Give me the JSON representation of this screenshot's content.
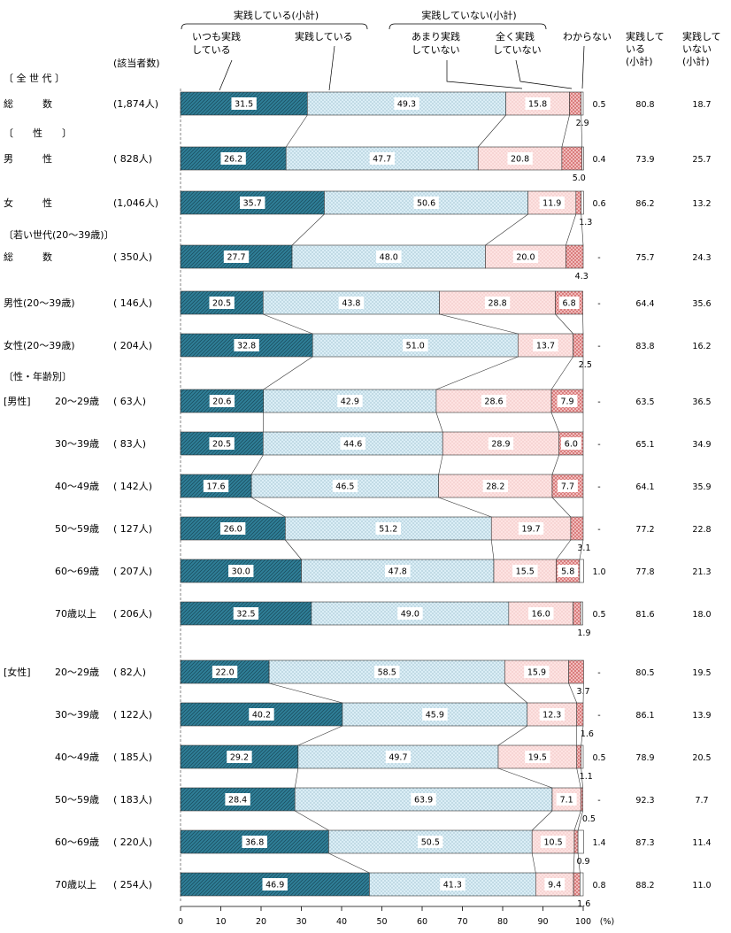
{
  "chart_data": {
    "type": "bar",
    "stacked": true,
    "orientation": "horizontal",
    "x_unit": "(%)",
    "xlim": [
      0,
      100
    ],
    "x_ticks": [
      "0",
      "10",
      "20",
      "30",
      "40",
      "50",
      "60",
      "70",
      "80",
      "90",
      "100"
    ],
    "group_labels": {
      "practice_subtotal": "実践している(小計)",
      "not_practice_subtotal": "実践していない(小計)"
    },
    "headers": {
      "n": "(該当者数)",
      "col_practice": [
        "実践して",
        "いる",
        "(小計)"
      ],
      "col_not_practice": [
        "実践して",
        "いない",
        "(小計)"
      ]
    },
    "series": [
      {
        "name": "いつも実践している",
        "label_lines": [
          "いつも実践",
          "している"
        ],
        "color": "#2f7f98"
      },
      {
        "name": "実践している",
        "label_lines": [
          "実践している"
        ],
        "color": "#dbeef6"
      },
      {
        "name": "あまり実践していない",
        "label_lines": [
          "あまり実践",
          "していない"
        ],
        "color": "#fde3e2"
      },
      {
        "name": "全く実践していない",
        "label_lines": [
          "全く実践",
          "していない"
        ],
        "color": "#e89a9a"
      },
      {
        "name": "わからない",
        "label_lines": [
          "わからない"
        ],
        "color": "#ffffff"
      }
    ],
    "sections": [
      {
        "type": "section",
        "label": "〔 全 世 代 〕"
      },
      {
        "type": "row",
        "label": "総　　　数",
        "n": "(1,874人)",
        "values": [
          31.5,
          49.3,
          15.8,
          2.9,
          0.5
        ],
        "shown": [
          "31.5",
          "49.3",
          "15.8",
          "2.9",
          "0.5"
        ],
        "practice": "80.8",
        "not_practice": "18.7"
      },
      {
        "type": "section",
        "label": "〔　　性　　〕"
      },
      {
        "type": "row",
        "label": "男　　　性",
        "n": "( 828人)",
        "values": [
          26.2,
          47.7,
          20.8,
          5.0,
          0.4
        ],
        "shown": [
          "26.2",
          "47.7",
          "20.8",
          "5.0",
          "0.4"
        ],
        "practice": "73.9",
        "not_practice": "25.7"
      },
      {
        "type": "row",
        "label": "女　　　性",
        "n": "(1,046人)",
        "values": [
          35.7,
          50.6,
          11.9,
          1.3,
          0.6
        ],
        "shown": [
          "35.7",
          "50.6",
          "11.9",
          "1.3",
          "0.6"
        ],
        "practice": "86.2",
        "not_practice": "13.2"
      },
      {
        "type": "section",
        "label": "〔若い世代(20～39歳)〕"
      },
      {
        "type": "row",
        "label": "総　　　数",
        "n": "( 350人)",
        "values": [
          27.7,
          48.0,
          20.0,
          4.3,
          0
        ],
        "shown": [
          "27.7",
          "48.0",
          "20.0",
          "4.3",
          "-"
        ],
        "practice": "75.7",
        "not_practice": "24.3"
      },
      {
        "type": "row",
        "label": "男性(20～39歳)",
        "n": "( 146人)",
        "values": [
          20.5,
          43.8,
          28.8,
          6.8,
          0
        ],
        "shown": [
          "20.5",
          "43.8",
          "28.8",
          "6.8",
          "-"
        ],
        "practice": "64.4",
        "not_practice": "35.6"
      },
      {
        "type": "row",
        "label": "女性(20～39歳)",
        "n": "( 204人)",
        "values": [
          32.8,
          51.0,
          13.7,
          2.5,
          0
        ],
        "shown": [
          "32.8",
          "51.0",
          "13.7",
          "2.5",
          "-"
        ],
        "practice": "83.8",
        "not_practice": "16.2"
      },
      {
        "type": "section",
        "label": "〔性・年齢別〕"
      },
      {
        "type": "row",
        "group": "[男性]",
        "label": "20～29歳",
        "n": "(  63人)",
        "values": [
          20.6,
          42.9,
          28.6,
          7.9,
          0
        ],
        "shown": [
          "20.6",
          "42.9",
          "28.6",
          "7.9",
          "-"
        ],
        "practice": "63.5",
        "not_practice": "36.5"
      },
      {
        "type": "row",
        "label": "30～39歳",
        "n": "(  83人)",
        "values": [
          20.5,
          44.6,
          28.9,
          6.0,
          0
        ],
        "shown": [
          "20.5",
          "44.6",
          "28.9",
          "6.0",
          "-"
        ],
        "practice": "65.1",
        "not_practice": "34.9"
      },
      {
        "type": "row",
        "label": "40～49歳",
        "n": "( 142人)",
        "values": [
          17.6,
          46.5,
          28.2,
          7.7,
          0
        ],
        "shown": [
          "17.6",
          "46.5",
          "28.2",
          "7.7",
          "-"
        ],
        "practice": "64.1",
        "not_practice": "35.9"
      },
      {
        "type": "row",
        "label": "50～59歳",
        "n": "( 127人)",
        "values": [
          26.0,
          51.2,
          19.7,
          3.1,
          0
        ],
        "shown": [
          "26.0",
          "51.2",
          "19.7",
          "3.1",
          "-"
        ],
        "practice": "77.2",
        "not_practice": "22.8"
      },
      {
        "type": "row",
        "label": "60～69歳",
        "n": "( 207人)",
        "values": [
          30.0,
          47.8,
          15.5,
          5.8,
          1.0
        ],
        "shown": [
          "30.0",
          "47.8",
          "15.5",
          "5.8",
          "1.0"
        ],
        "practice": "77.8",
        "not_practice": "21.3"
      },
      {
        "type": "row",
        "label": "70歳以上",
        "n": "( 206人)",
        "values": [
          32.5,
          49.0,
          16.0,
          1.9,
          0.5
        ],
        "shown": [
          "32.5",
          "49.0",
          "16.0",
          "1.9",
          "0.5"
        ],
        "practice": "81.6",
        "not_practice": "18.0"
      },
      {
        "type": "row",
        "group": "[女性]",
        "label": "20～29歳",
        "n": "(  82人)",
        "values": [
          22.0,
          58.5,
          15.9,
          3.7,
          0
        ],
        "shown": [
          "22.0",
          "58.5",
          "15.9",
          "3.7",
          "-"
        ],
        "practice": "80.5",
        "not_practice": "19.5"
      },
      {
        "type": "row",
        "label": "30～39歳",
        "n": "( 122人)",
        "values": [
          40.2,
          45.9,
          12.3,
          1.6,
          0
        ],
        "shown": [
          "40.2",
          "45.9",
          "12.3",
          "1.6",
          "-"
        ],
        "practice": "86.1",
        "not_practice": "13.9"
      },
      {
        "type": "row",
        "label": "40～49歳",
        "n": "( 185人)",
        "values": [
          29.2,
          49.7,
          19.5,
          1.1,
          0.5
        ],
        "shown": [
          "29.2",
          "49.7",
          "19.5",
          "1.1",
          "0.5"
        ],
        "practice": "78.9",
        "not_practice": "20.5"
      },
      {
        "type": "row",
        "label": "50～59歳",
        "n": "( 183人)",
        "values": [
          28.4,
          63.9,
          7.1,
          0.5,
          0
        ],
        "shown": [
          "28.4",
          "63.9",
          "7.1",
          "0.5",
          "-"
        ],
        "practice": "92.3",
        "not_practice": "7.7"
      },
      {
        "type": "row",
        "label": "60～69歳",
        "n": "( 220人)",
        "values": [
          36.8,
          50.5,
          10.5,
          0.9,
          1.4
        ],
        "shown": [
          "36.8",
          "50.5",
          "10.5",
          "0.9",
          "1.4"
        ],
        "practice": "87.3",
        "not_practice": "11.4"
      },
      {
        "type": "row",
        "label": "70歳以上",
        "n": "( 254人)",
        "values": [
          46.9,
          41.3,
          9.4,
          1.6,
          0.8
        ],
        "shown": [
          "46.9",
          "41.3",
          "9.4",
          "1.6",
          "0.8"
        ],
        "practice": "88.2",
        "not_practice": "11.0"
      }
    ]
  }
}
